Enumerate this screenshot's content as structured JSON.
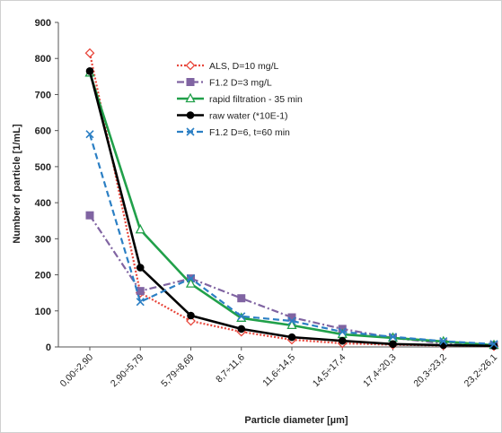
{
  "chart_data": {
    "type": "line",
    "title": "",
    "xlabel": "Particle diameter [µm]",
    "ylabel": "Number of particle [1/mL]",
    "ylim": [
      0,
      900
    ],
    "yticks": [
      0,
      100,
      200,
      300,
      400,
      500,
      600,
      700,
      800,
      900
    ],
    "grid": false,
    "legend_position": "top-right",
    "categories": [
      "0,00÷2,90",
      "2,90÷5,79",
      "5,79÷8,69",
      "8,7÷11,6",
      "11,6÷14,5",
      "14,5÷17,4",
      "17,4÷20,3",
      "20,3÷23,2",
      "23,2÷26,1"
    ],
    "series": [
      {
        "name": "ALS, D=10 mg/L",
        "color": "#e8473c",
        "dash": "dotted",
        "marker": "diamond",
        "values": [
          815,
          150,
          72,
          42,
          20,
          10,
          6,
          4,
          2
        ]
      },
      {
        "name": "F1.2 D=3 mg/L",
        "color": "#8064a2",
        "dash": "dashdot",
        "marker": "square",
        "values": [
          365,
          155,
          190,
          135,
          82,
          50,
          25,
          10,
          5
        ]
      },
      {
        "name": "rapid filtration - 35 min",
        "color": "#21a04a",
        "dash": "solid",
        "marker": "triangle",
        "values": [
          760,
          325,
          175,
          80,
          60,
          35,
          25,
          15,
          5
        ]
      },
      {
        "name": "raw water (*10E-1)",
        "color": "#000000",
        "dash": "solid",
        "marker": "circle",
        "values": [
          765,
          220,
          87,
          50,
          27,
          17,
          8,
          5,
          3
        ]
      },
      {
        "name": "F1.2 D=6, t=60 min",
        "color": "#2b7fc4",
        "dash": "dashed",
        "marker": "x",
        "values": [
          590,
          125,
          190,
          85,
          72,
          42,
          28,
          16,
          8
        ]
      }
    ]
  }
}
